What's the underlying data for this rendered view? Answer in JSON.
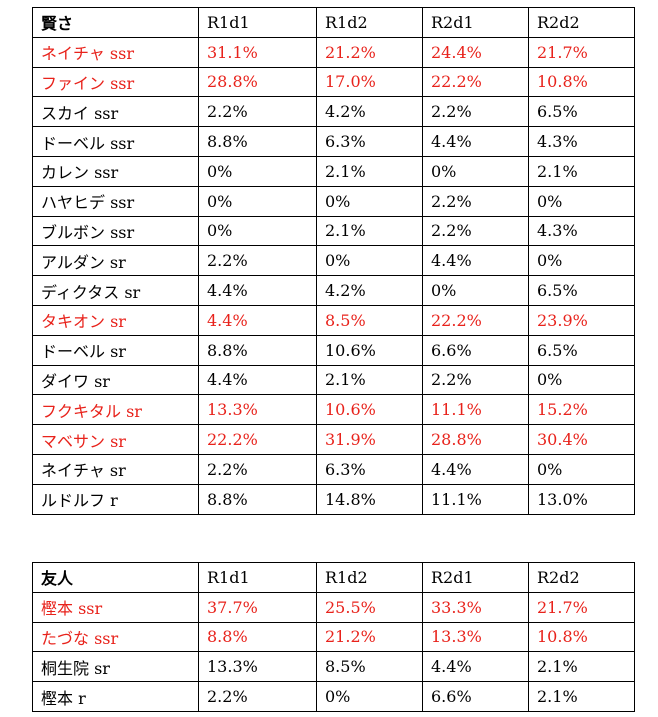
{
  "colors": {
    "highlight": "#e8221b",
    "text": "#000000",
    "border": "#000000"
  },
  "kashikosa_table": {
    "header": [
      "賢さ",
      "R1d1",
      "R1d2",
      "R2d1",
      "R2d2"
    ],
    "rows": [
      {
        "name": "ネイチャ ssr",
        "values": [
          "31.1%",
          "21.2%",
          "24.4%",
          "21.7%"
        ],
        "highlight": true
      },
      {
        "name": "ファイン ssr",
        "values": [
          "28.8%",
          "17.0%",
          "22.2%",
          "10.8%"
        ],
        "highlight": true
      },
      {
        "name": "スカイ ssr",
        "values": [
          "2.2%",
          "4.2%",
          "2.2%",
          "6.5%"
        ],
        "highlight": false
      },
      {
        "name": "ドーベル ssr",
        "values": [
          "8.8%",
          "6.3%",
          "4.4%",
          "4.3%"
        ],
        "highlight": false
      },
      {
        "name": "カレン ssr",
        "values": [
          "0%",
          "2.1%",
          "0%",
          "2.1%"
        ],
        "highlight": false
      },
      {
        "name": "ハヤヒデ ssr",
        "values": [
          "0%",
          "0%",
          "2.2%",
          "0%"
        ],
        "highlight": false
      },
      {
        "name": "ブルボン ssr",
        "values": [
          "0%",
          "2.1%",
          "2.2%",
          "4.3%"
        ],
        "highlight": false
      },
      {
        "name": "アルダン sr",
        "values": [
          "2.2%",
          "0%",
          "4.4%",
          "0%"
        ],
        "highlight": false
      },
      {
        "name": "ディクタス sr",
        "values": [
          "4.4%",
          "4.2%",
          "0%",
          "6.5%"
        ],
        "highlight": false
      },
      {
        "name": "タキオン sr",
        "values": [
          "4.4%",
          "8.5%",
          "22.2%",
          "23.9%"
        ],
        "highlight": true
      },
      {
        "name": "ドーベル sr",
        "values": [
          "8.8%",
          "10.6%",
          "6.6%",
          "6.5%"
        ],
        "highlight": false
      },
      {
        "name": "ダイワ sr",
        "values": [
          "4.4%",
          "2.1%",
          "2.2%",
          "0%"
        ],
        "highlight": false
      },
      {
        "name": "フクキタル sr",
        "values": [
          "13.3%",
          "10.6%",
          "11.1%",
          "15.2%"
        ],
        "highlight": true
      },
      {
        "name": "マベサン sr",
        "values": [
          "22.2%",
          "31.9%",
          "28.8%",
          "30.4%"
        ],
        "highlight": true
      },
      {
        "name": "ネイチャ sr",
        "values": [
          "2.2%",
          "6.3%",
          "4.4%",
          "0%"
        ],
        "highlight": false
      },
      {
        "name": "ルドルフ r",
        "values": [
          "8.8%",
          "14.8%",
          "11.1%",
          "13.0%"
        ],
        "highlight": false
      }
    ]
  },
  "yujin_table": {
    "header": [
      "友人",
      "R1d1",
      "R1d2",
      "R2d1",
      "R2d2"
    ],
    "rows": [
      {
        "name": "樫本 ssr",
        "values": [
          "37.7%",
          "25.5%",
          "33.3%",
          "21.7%"
        ],
        "highlight": true
      },
      {
        "name": "たづな ssr",
        "values": [
          "8.8%",
          "21.2%",
          "13.3%",
          "10.8%"
        ],
        "highlight": true
      },
      {
        "name": "桐生院 sr",
        "values": [
          "13.3%",
          "8.5%",
          "4.4%",
          "2.1%"
        ],
        "highlight": false
      },
      {
        "name": "樫本 r",
        "values": [
          "2.2%",
          "0%",
          "6.6%",
          "2.1%"
        ],
        "highlight": false
      }
    ]
  }
}
